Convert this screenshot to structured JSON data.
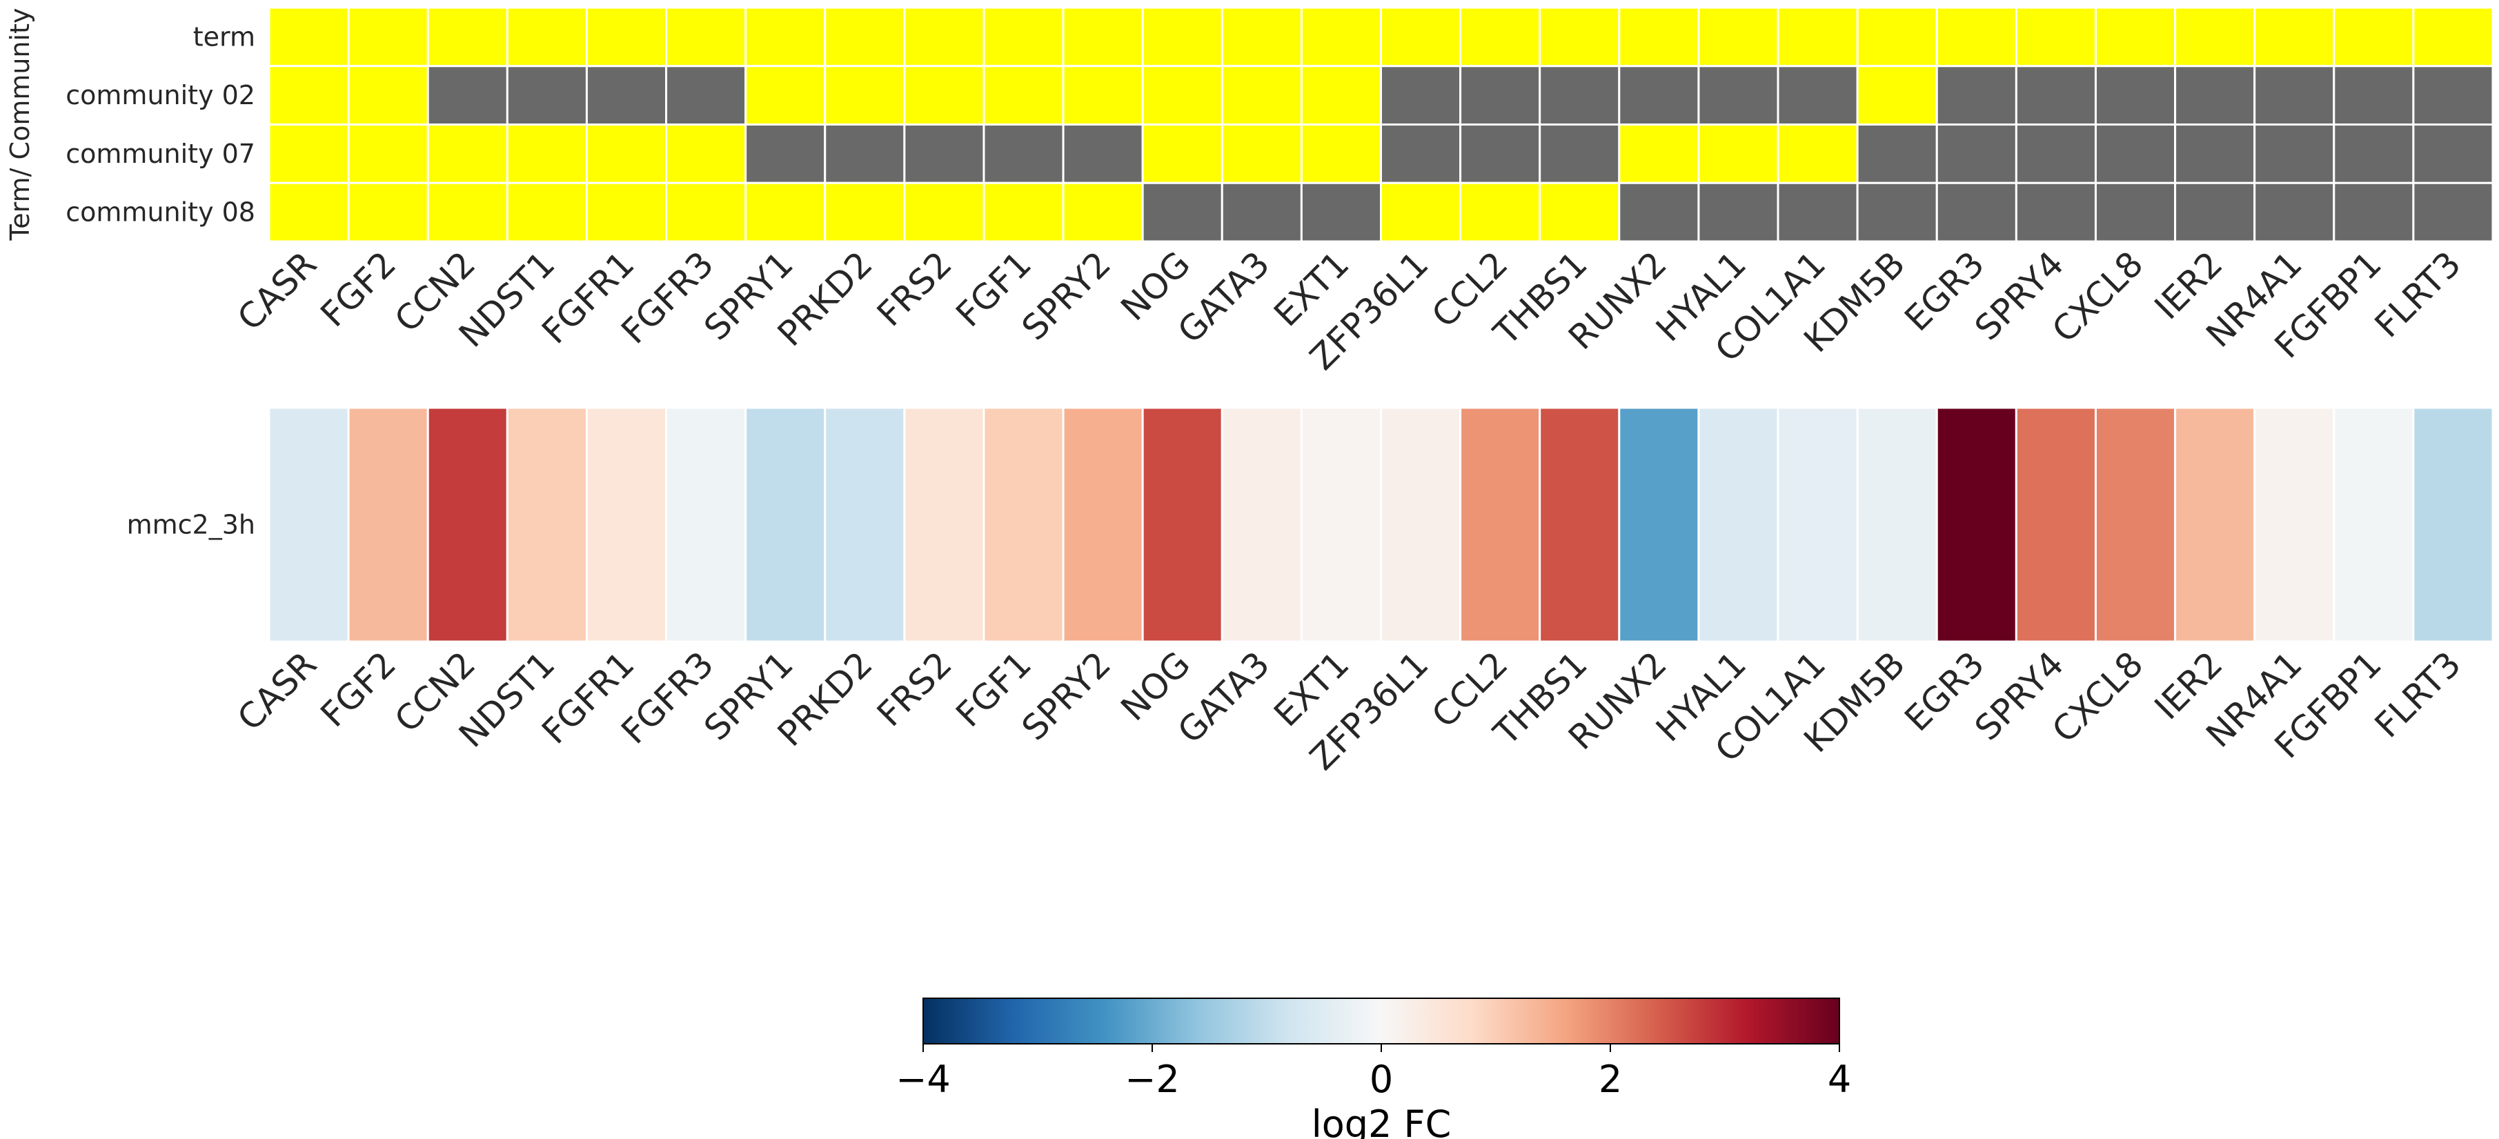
{
  "chart_data": [
    {
      "type": "heatmap",
      "name": "membership",
      "ylabel": "Term/ Community",
      "rows": [
        "term",
        "community 02",
        "community 07",
        "community 08"
      ],
      "columns": [
        "CASR",
        "FGF2",
        "CCN2",
        "NDST1",
        "FGFR1",
        "FGFR3",
        "SPRY1",
        "PRKD2",
        "FRS2",
        "FGF1",
        "SPRY2",
        "NOG",
        "GATA3",
        "EXT1",
        "ZFP36L1",
        "CCL2",
        "THBS1",
        "RUNX2",
        "HYAL1",
        "COL1A1",
        "KDM5B",
        "EGR3",
        "SPRY4",
        "CXCL8",
        "IER2",
        "NR4A1",
        "FGFBP1",
        "FLRT3"
      ],
      "values": [
        [
          1,
          1,
          1,
          1,
          1,
          1,
          1,
          1,
          1,
          1,
          1,
          1,
          1,
          1,
          1,
          1,
          1,
          1,
          1,
          1,
          1,
          1,
          1,
          1,
          1,
          1,
          1,
          1
        ],
        [
          1,
          1,
          0,
          0,
          0,
          0,
          1,
          1,
          1,
          1,
          1,
          1,
          1,
          1,
          0,
          0,
          0,
          0,
          0,
          0,
          1,
          0,
          0,
          0,
          0,
          0,
          0,
          0
        ],
        [
          1,
          1,
          1,
          1,
          1,
          1,
          0,
          0,
          0,
          0,
          0,
          1,
          1,
          1,
          0,
          0,
          0,
          1,
          1,
          1,
          0,
          0,
          0,
          0,
          0,
          0,
          0,
          0
        ],
        [
          1,
          1,
          1,
          1,
          1,
          1,
          1,
          1,
          1,
          1,
          1,
          0,
          0,
          0,
          1,
          1,
          1,
          0,
          0,
          0,
          0,
          0,
          0,
          0,
          0,
          0,
          0,
          0
        ]
      ],
      "colors": {
        "present": "#ffff00",
        "absent": "#696969",
        "grid": "#ffffff"
      }
    },
    {
      "type": "heatmap",
      "name": "log2fc",
      "rows": [
        "mmc2_3h"
      ],
      "columns": [
        "CASR",
        "FGF2",
        "CCN2",
        "NDST1",
        "FGFR1",
        "FGFR3",
        "SPRY1",
        "PRKD2",
        "FRS2",
        "FGF1",
        "SPRY2",
        "NOG",
        "GATA3",
        "EXT1",
        "ZFP36L1",
        "CCL2",
        "THBS1",
        "RUNX2",
        "HYAL1",
        "COL1A1",
        "KDM5B",
        "EGR3",
        "SPRY4",
        "CXCL8",
        "IER2",
        "NR4A1",
        "FGFBP1",
        "FLRT3"
      ],
      "values": [
        [
          -0.6,
          1.3,
          2.8,
          1.0,
          0.5,
          -0.2,
          -1.0,
          -0.85,
          0.55,
          1.0,
          1.45,
          2.65,
          0.25,
          0.12,
          0.22,
          1.8,
          2.55,
          -2.2,
          -0.6,
          -0.4,
          -0.3,
          4.0,
          2.2,
          2.0,
          1.3,
          0.15,
          -0.1,
          -1.1
        ]
      ],
      "colormap": "RdBu_r",
      "vmin": -4,
      "vmax": 4
    },
    {
      "type": "colorbar",
      "title": "log2 FC",
      "ticks": [
        -4,
        -2,
        0,
        2,
        4
      ],
      "tick_labels": [
        "−4",
        "−2",
        "0",
        "2",
        "4"
      ],
      "range": [
        -4,
        4
      ],
      "orientation": "horizontal",
      "placement": "bottom-center"
    }
  ]
}
